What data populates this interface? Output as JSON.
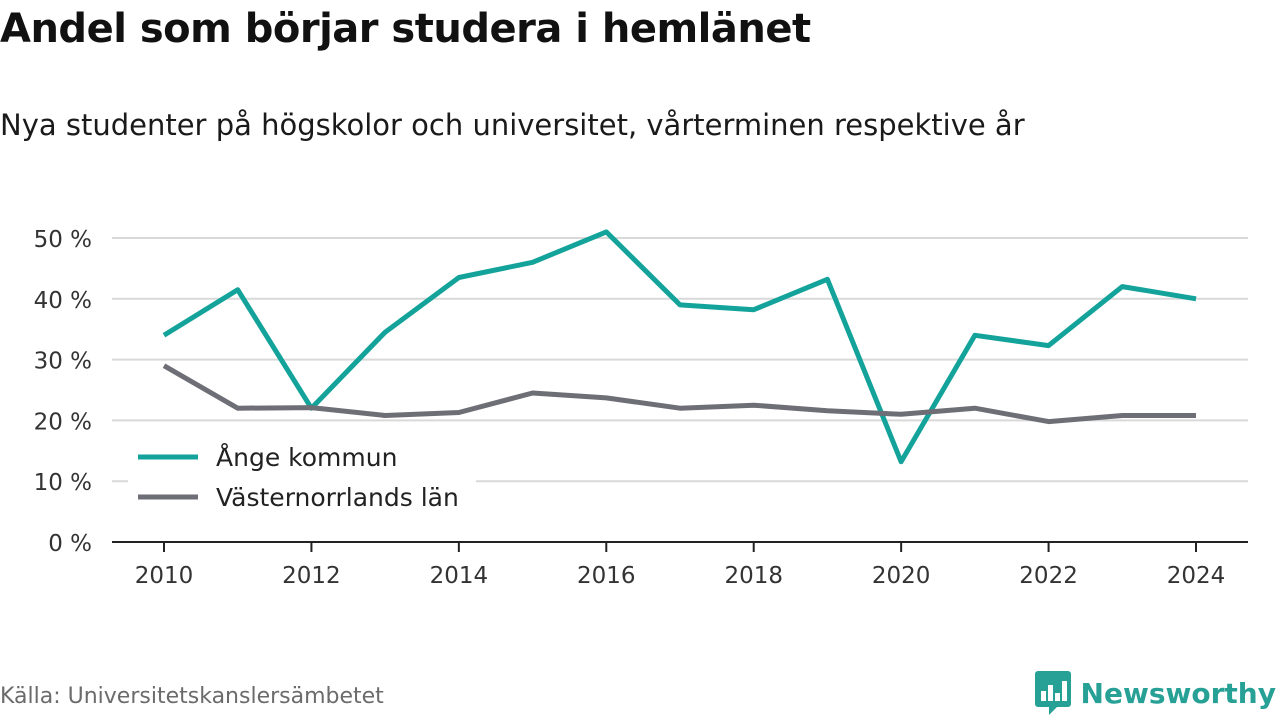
{
  "header": {
    "title": "Andel som börjar studera i hemlänet",
    "subtitle": "Nya studenter på högskolor och universitet, vårterminen respektive år"
  },
  "footer": {
    "source": "Källa: Universitetskanslersämbetet",
    "brand": "Newsworthy",
    "brand_icon": "chart-bubble-icon",
    "brand_color": "#27a096"
  },
  "colors": {
    "ange": "#13a39a",
    "vasternorrland": "#6e6e76",
    "grid": "#d9d9d9",
    "axis": "#222222"
  },
  "chart_data": {
    "type": "line",
    "title": "Andel som börjar studera i hemlänet",
    "subtitle": "Nya studenter på högskolor och universitet, vårterminen respektive år",
    "x": [
      2010,
      2011,
      2012,
      2013,
      2014,
      2015,
      2016,
      2017,
      2018,
      2019,
      2020,
      2021,
      2022,
      2023,
      2024
    ],
    "x_ticks": [
      2010,
      2012,
      2014,
      2016,
      2018,
      2020,
      2022,
      2024
    ],
    "y_ticks": [
      0,
      10,
      20,
      30,
      40,
      50
    ],
    "y_tick_labels": [
      "0 %",
      "10 %",
      "20 %",
      "30 %",
      "40 %",
      "50 %"
    ],
    "ylim": [
      0,
      50
    ],
    "xlim": [
      2010,
      2024
    ],
    "grid": true,
    "legend_position": "bottom-left",
    "series": [
      {
        "name": "Ånge kommun",
        "color": "#13a39a",
        "values": [
          34,
          41.5,
          22,
          34.5,
          43.5,
          46,
          51,
          39,
          38.2,
          43.2,
          13.2,
          34,
          32.3,
          42,
          40
        ]
      },
      {
        "name": "Västernorrlands län",
        "color": "#6e6e76",
        "values": [
          29,
          22,
          22.1,
          20.8,
          21.3,
          24.5,
          23.7,
          22,
          22.5,
          21.6,
          21,
          22,
          19.8,
          20.8,
          20.8
        ]
      }
    ]
  }
}
